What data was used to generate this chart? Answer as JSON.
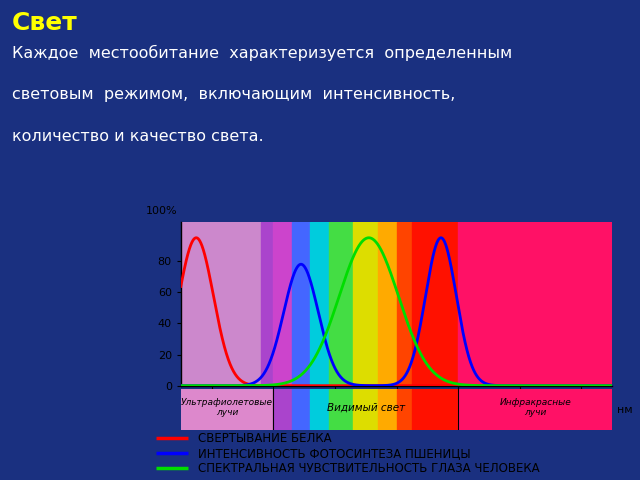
{
  "title": "Свет",
  "body_text_lines": [
    "Каждое  местообитание  характеризуется  определенным",
    "световым  режимом,  включающим  интенсивность,",
    "количество и качество света."
  ],
  "background_color": "#1a3080",
  "header_bg": "#4a72c0",
  "title_color": "#ffff00",
  "body_color": "#ffffff",
  "chart_outer_bg": "#1a3080",
  "chart_inner_bg": "#ffffff",
  "legend_bg": "#ffffff",
  "legend_text_color": "#000000",
  "legend_items": [
    {
      "color": "#ff0000",
      "label": "СВЕРТЫВАНИЕ БЕЛКА"
    },
    {
      "color": "#0000ff",
      "label": "ИНТЕНСИВНОСТЬ ФОТОСИНТЕЗА ПШЕНИЦЫ"
    },
    {
      "color": "#00dd00",
      "label": "СПЕКТРАЛЬНАЯ ЧУВСТВИТЕЛЬНОСТЬ ГЛАЗА ЧЕЛОВЕКА"
    }
  ],
  "spectrum_bands": [
    {
      "xmin": 250,
      "xmax": 380,
      "color": "#cc88cc"
    },
    {
      "xmin": 380,
      "xmax": 400,
      "color": "#aa44cc"
    },
    {
      "xmin": 400,
      "xmax": 430,
      "color": "#cc44cc"
    },
    {
      "xmin": 430,
      "xmax": 460,
      "color": "#4466ff"
    },
    {
      "xmin": 460,
      "xmax": 490,
      "color": "#00ccdd"
    },
    {
      "xmin": 490,
      "xmax": 530,
      "color": "#44dd44"
    },
    {
      "xmin": 530,
      "xmax": 570,
      "color": "#dddd00"
    },
    {
      "xmin": 570,
      "xmax": 600,
      "color": "#ffaa00"
    },
    {
      "xmin": 600,
      "xmax": 625,
      "color": "#ff4400"
    },
    {
      "xmin": 625,
      "xmax": 700,
      "color": "#ff1100"
    },
    {
      "xmin": 700,
      "xmax": 950,
      "color": "#ff1166"
    }
  ],
  "uv_band_color": "#dd88cc",
  "vis_band_color": "#cc44cc",
  "ir_band_color": "#ff1166",
  "xmin": 250,
  "xmax": 950,
  "ymin": 0,
  "ymax": 100,
  "xticks": [
    300,
    400,
    500,
    600,
    700,
    800,
    900
  ],
  "yticks": [
    0,
    20,
    40,
    60,
    80
  ],
  "red_peak": 275,
  "red_sigma": 28,
  "red_amp": 95,
  "blue_peak1": 445,
  "blue_sigma1": 28,
  "blue_amp1": 78,
  "blue_peak2": 672,
  "blue_sigma2": 25,
  "blue_amp2": 95,
  "green_peak": 555,
  "green_sigma": 48,
  "green_amp": 95
}
